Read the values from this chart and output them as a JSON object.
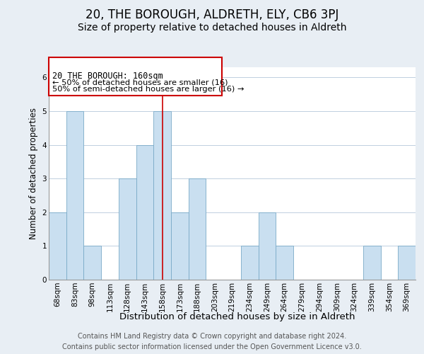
{
  "title": "20, THE BOROUGH, ALDRETH, ELY, CB6 3PJ",
  "subtitle": "Size of property relative to detached houses in Aldreth",
  "xlabel": "Distribution of detached houses by size in Aldreth",
  "ylabel": "Number of detached properties",
  "bin_labels": [
    "68sqm",
    "83sqm",
    "98sqm",
    "113sqm",
    "128sqm",
    "143sqm",
    "158sqm",
    "173sqm",
    "188sqm",
    "203sqm",
    "219sqm",
    "234sqm",
    "249sqm",
    "264sqm",
    "279sqm",
    "294sqm",
    "309sqm",
    "324sqm",
    "339sqm",
    "354sqm",
    "369sqm"
  ],
  "bar_heights": [
    2,
    5,
    1,
    0,
    3,
    4,
    5,
    2,
    3,
    0,
    0,
    1,
    2,
    1,
    0,
    0,
    0,
    0,
    1,
    0,
    1
  ],
  "highlight_index": 6,
  "bar_color": "#c9dff0",
  "bar_edge_color": "#7aaac8",
  "background_color": "#e8eef4",
  "plot_bg_color": "#ffffff",
  "grid_color": "#c0cfe0",
  "annotation_line1": "20 THE BOROUGH: 160sqm",
  "annotation_line2": "← 50% of detached houses are smaller (16)",
  "annotation_line3": "50% of semi-detached houses are larger (16) →",
  "annotation_box_edge": "#cc0000",
  "highlight_line_color": "#cc0000",
  "ylim": [
    0,
    6.3
  ],
  "yticks": [
    0,
    1,
    2,
    3,
    4,
    5,
    6
  ],
  "footer_text": "Contains HM Land Registry data © Crown copyright and database right 2024.\nContains public sector information licensed under the Open Government Licence v3.0.",
  "title_fontsize": 12,
  "subtitle_fontsize": 10,
  "xlabel_fontsize": 9.5,
  "ylabel_fontsize": 8.5,
  "tick_fontsize": 7.5,
  "footer_fontsize": 7,
  "ann_fontsize": 8.5
}
